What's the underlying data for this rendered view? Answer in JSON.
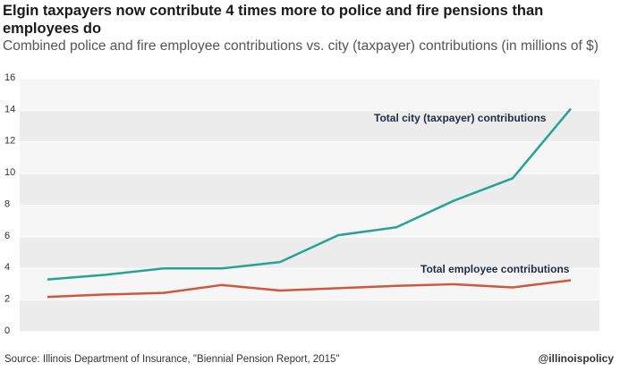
{
  "chart_data": {
    "type": "line",
    "title": "Elgin taxpayers now contribute 4 times more to police and fire pensions than employees do",
    "subtitle": "Combined police and fire employee contributions vs. city (taxpayer) contributions (in millions of $)",
    "categories": [
      null,
      null,
      null,
      null,
      null,
      null,
      null,
      null,
      null,
      null
    ],
    "series": [
      {
        "name": "Total city (taxpayer) contributions",
        "color": "#26a394",
        "values": [
          3.3,
          3.6,
          4.0,
          4.0,
          4.4,
          6.1,
          6.6,
          8.3,
          9.7,
          14.1
        ]
      },
      {
        "name": "Total employee contributions",
        "color": "#d2573a",
        "values": [
          2.2,
          2.35,
          2.45,
          2.95,
          2.6,
          2.75,
          2.9,
          3.0,
          2.8,
          3.25
        ]
      }
    ],
    "ylim": [
      0,
      16
    ],
    "yticks": [
      0,
      2,
      4,
      6,
      8,
      10,
      12,
      14,
      16
    ],
    "grid": true,
    "source": "Source: Illinois Department of Insurance, \"Biennial Pension Report, 2015\"",
    "credit": "@illinoispolicy"
  }
}
